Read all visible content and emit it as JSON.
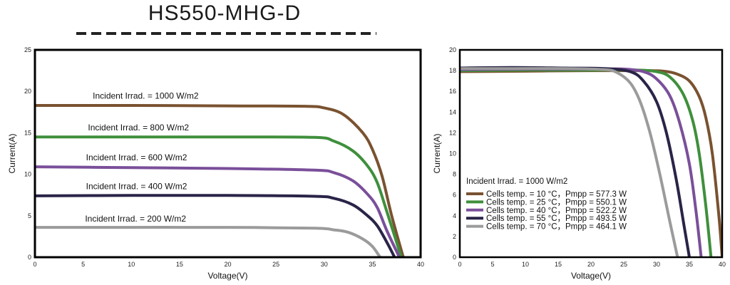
{
  "page_title": "HS550-MHG-D",
  "colors": {
    "brown": "#7a5230",
    "green": "#3f8f3c",
    "purple": "#7a4f9a",
    "navy": "#2a2448",
    "gray": "#9b9b9b"
  },
  "chart_data": [
    {
      "type": "line",
      "title": "",
      "xlabel": "Voltage(V)",
      "ylabel": "Current(A)",
      "xlim": [
        0,
        40
      ],
      "ylim": [
        0,
        25
      ],
      "xticks": [
        0,
        5,
        10,
        15,
        20,
        25,
        30,
        35,
        40
      ],
      "yticks": [
        0,
        5,
        10,
        15,
        20,
        25
      ],
      "grid": false,
      "series": [
        {
          "name": "Incident Irrad. = 1000 W/m2",
          "color": "#7a5230",
          "x": [
            0,
            10,
            20,
            28,
            30,
            32,
            34,
            35,
            36,
            37,
            38.2
          ],
          "y": [
            18.3,
            18.3,
            18.25,
            18.2,
            18.0,
            17.2,
            15.0,
            13.0,
            9.8,
            5.0,
            0
          ]
        },
        {
          "name": "Incident Irrad. = 800 W/m2",
          "color": "#3f8f3c",
          "x": [
            0,
            10,
            20,
            29,
            31,
            33,
            34.5,
            35.5,
            36.5,
            38.0
          ],
          "y": [
            14.5,
            14.5,
            14.5,
            14.45,
            14.0,
            12.8,
            11.0,
            9.0,
            5.5,
            0
          ]
        },
        {
          "name": "Incident Irrad. = 600 W/m2",
          "color": "#7a4f9a",
          "x": [
            0,
            10,
            20,
            29,
            31,
            33,
            34.5,
            35.5,
            36.5,
            37.8
          ],
          "y": [
            10.9,
            10.8,
            10.7,
            10.5,
            10.2,
            9.2,
            7.6,
            6.0,
            3.2,
            0
          ]
        },
        {
          "name": "Incident Irrad. = 400 W/m2",
          "color": "#2a2448",
          "x": [
            0,
            10,
            20,
            29,
            31,
            33,
            34.5,
            35.5,
            36.5,
            37.3
          ],
          "y": [
            7.4,
            7.45,
            7.45,
            7.35,
            7.1,
            6.3,
            5.0,
            3.8,
            1.8,
            0
          ]
        },
        {
          "name": "Incident Irrad. = 200 W/m2",
          "color": "#9b9b9b",
          "x": [
            0,
            10,
            20,
            29,
            31,
            32.5,
            34,
            35,
            35.8
          ],
          "y": [
            3.6,
            3.6,
            3.6,
            3.5,
            3.3,
            3.0,
            2.2,
            1.3,
            0
          ]
        }
      ],
      "annotations": [
        {
          "text": "Incident Irrad. = 1000 W/m2",
          "x": 6,
          "y": 19.1
        },
        {
          "text": "Incident Irrad. = 800 W/m2",
          "x": 5.5,
          "y": 15.3
        },
        {
          "text": "Incident Irrad. = 600 W/m2",
          "x": 5.3,
          "y": 11.7
        },
        {
          "text": "Incident Irrad. = 400 W/m2",
          "x": 5.3,
          "y": 8.2
        },
        {
          "text": "Incident Irrad. = 200 W/m2",
          "x": 5.2,
          "y": 4.3
        }
      ]
    },
    {
      "type": "line",
      "title": "",
      "xlabel": "Voltage(V)",
      "ylabel": "Current(A)",
      "xlim": [
        0,
        40
      ],
      "ylim": [
        0,
        20
      ],
      "xticks": [
        0,
        5,
        10,
        15,
        20,
        25,
        30,
        35,
        40
      ],
      "yticks": [
        0,
        2,
        4,
        6,
        8,
        10,
        12,
        14,
        16,
        18,
        20
      ],
      "grid": false,
      "legend_header": "Incident Irrad. = 1000 W/m2",
      "legend_position": "bottom-left",
      "series": [
        {
          "name": "Cells temp. = 10 °C，Pmpp = 577.3 W",
          "color": "#7a5230",
          "x": [
            0,
            10,
            20,
            28,
            31,
            33,
            35,
            36.5,
            37.5,
            38.5,
            39.5,
            40
          ],
          "y": [
            17.9,
            17.95,
            18.0,
            18.0,
            17.95,
            17.7,
            17.0,
            15.5,
            13.5,
            10.0,
            4.0,
            0
          ]
        },
        {
          "name": "Cells temp. = 25 °C，Pmpp = 550.1 W",
          "color": "#3f8f3c",
          "x": [
            0,
            10,
            20,
            27,
            30,
            32,
            34,
            35.5,
            36.5,
            37.5,
            38.3
          ],
          "y": [
            18.0,
            18.05,
            18.05,
            18.05,
            17.9,
            17.4,
            15.8,
            13.2,
            10.0,
            5.0,
            0
          ]
        },
        {
          "name": "Cells temp. = 40 °C，Pmpp = 522.2 W",
          "color": "#7a4f9a",
          "x": [
            0,
            10,
            20,
            25,
            28,
            30,
            32,
            33.5,
            35,
            36,
            36.8
          ],
          "y": [
            18.1,
            18.15,
            18.15,
            18.15,
            17.9,
            17.2,
            15.6,
            13.0,
            9.0,
            4.5,
            0
          ]
        },
        {
          "name": "Cells temp. = 55 °C，Pmpp = 493.5 W",
          "color": "#2a2448",
          "x": [
            0,
            8,
            16,
            22,
            26,
            28,
            30,
            31.5,
            33,
            34.2,
            35.0
          ],
          "y": [
            18.25,
            18.3,
            18.25,
            18.2,
            17.9,
            17.0,
            15.0,
            12.0,
            7.5,
            3.0,
            0
          ]
        },
        {
          "name": "Cells temp. = 70 °C，Pmpp = 464.1 W",
          "color": "#9b9b9b",
          "x": [
            0,
            8,
            16,
            22,
            24,
            26,
            27.5,
            29,
            30.5,
            32,
            33.2
          ],
          "y": [
            18.2,
            18.2,
            18.2,
            18.1,
            17.8,
            16.8,
            15.0,
            12.0,
            8.0,
            3.5,
            0
          ]
        }
      ]
    }
  ]
}
